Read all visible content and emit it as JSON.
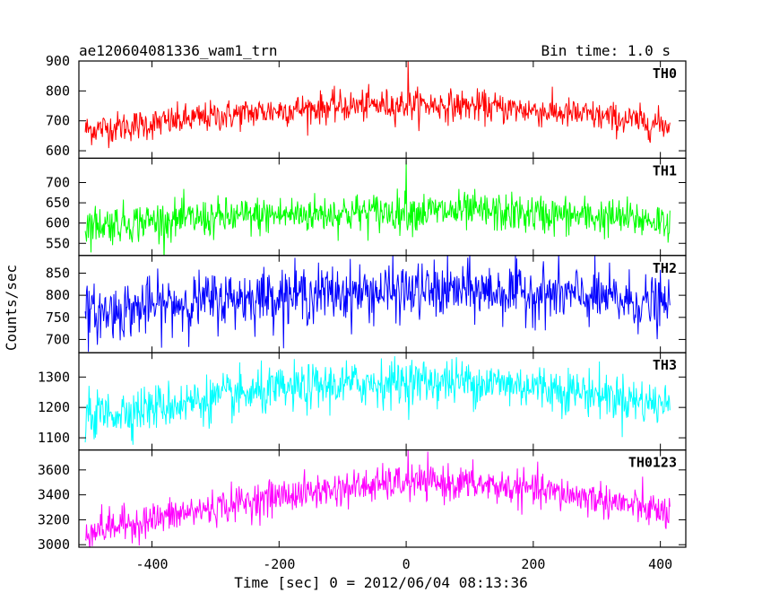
{
  "header": {
    "left": "ae120604081336_wam1_trn",
    "right": "Bin time: 1.0 s"
  },
  "chart_data": {
    "type": "line",
    "xlabel": "Time [sec] 0 = 2012/06/04 08:13:36",
    "ylabel": "Counts/sec",
    "xlim": [
      -515,
      440
    ],
    "x_data_range": [
      -505,
      415
    ],
    "xticks": [
      -400,
      -200,
      0,
      200,
      400
    ],
    "bin_time_s": 1.0,
    "panels": [
      {
        "name": "TH0",
        "color": "#ff0000",
        "ylim": [
          575,
          900
        ],
        "yticks": [
          600,
          700,
          800,
          900
        ],
        "profile": [
          [
            -505,
            670
          ],
          [
            -400,
            690
          ],
          [
            -300,
            715
          ],
          [
            -200,
            735
          ],
          [
            -100,
            748
          ],
          [
            0,
            755
          ],
          [
            100,
            750
          ],
          [
            200,
            735
          ],
          [
            300,
            715
          ],
          [
            415,
            685
          ]
        ],
        "noise_sigma": 26,
        "spike": {
          "x": 3,
          "value": 900
        }
      },
      {
        "name": "TH1",
        "color": "#00ff00",
        "ylim": [
          520,
          760
        ],
        "yticks": [
          550,
          600,
          650,
          700
        ],
        "profile": [
          [
            -505,
            595
          ],
          [
            -400,
            605
          ],
          [
            -300,
            612
          ],
          [
            -200,
            620
          ],
          [
            -100,
            625
          ],
          [
            0,
            628
          ],
          [
            100,
            628
          ],
          [
            200,
            622
          ],
          [
            300,
            615
          ],
          [
            415,
            605
          ]
        ],
        "noise_sigma": 24,
        "spike": {
          "x": 0,
          "value": 755
        }
      },
      {
        "name": "TH2",
        "color": "#0000ff",
        "ylim": [
          670,
          890
        ],
        "yticks": [
          700,
          750,
          800,
          850
        ],
        "profile": [
          [
            -505,
            755
          ],
          [
            -400,
            775
          ],
          [
            -300,
            790
          ],
          [
            -200,
            800
          ],
          [
            -100,
            805
          ],
          [
            0,
            808
          ],
          [
            100,
            810
          ],
          [
            200,
            805
          ],
          [
            300,
            795
          ],
          [
            415,
            775
          ]
        ],
        "noise_sigma": 32,
        "spike": null
      },
      {
        "name": "TH3",
        "color": "#00ffff",
        "ylim": [
          1060,
          1380
        ],
        "yticks": [
          1100,
          1200,
          1300
        ],
        "profile": [
          [
            -505,
            1170
          ],
          [
            -400,
            1200
          ],
          [
            -300,
            1230
          ],
          [
            -200,
            1255
          ],
          [
            -100,
            1275
          ],
          [
            0,
            1285
          ],
          [
            100,
            1285
          ],
          [
            200,
            1270
          ],
          [
            300,
            1245
          ],
          [
            415,
            1205
          ]
        ],
        "noise_sigma": 38,
        "spike": null
      },
      {
        "name": "TH0123",
        "color": "#ff00ff",
        "ylim": [
          2980,
          3760
        ],
        "yticks": [
          3000,
          3200,
          3400,
          3600
        ],
        "profile": [
          [
            -505,
            3110
          ],
          [
            -400,
            3200
          ],
          [
            -300,
            3300
          ],
          [
            -200,
            3390
          ],
          [
            -100,
            3450
          ],
          [
            0,
            3500
          ],
          [
            100,
            3490
          ],
          [
            200,
            3440
          ],
          [
            300,
            3370
          ],
          [
            415,
            3250
          ]
        ],
        "noise_sigma": 70,
        "spike": {
          "x": 3,
          "value": 3760
        }
      }
    ]
  }
}
